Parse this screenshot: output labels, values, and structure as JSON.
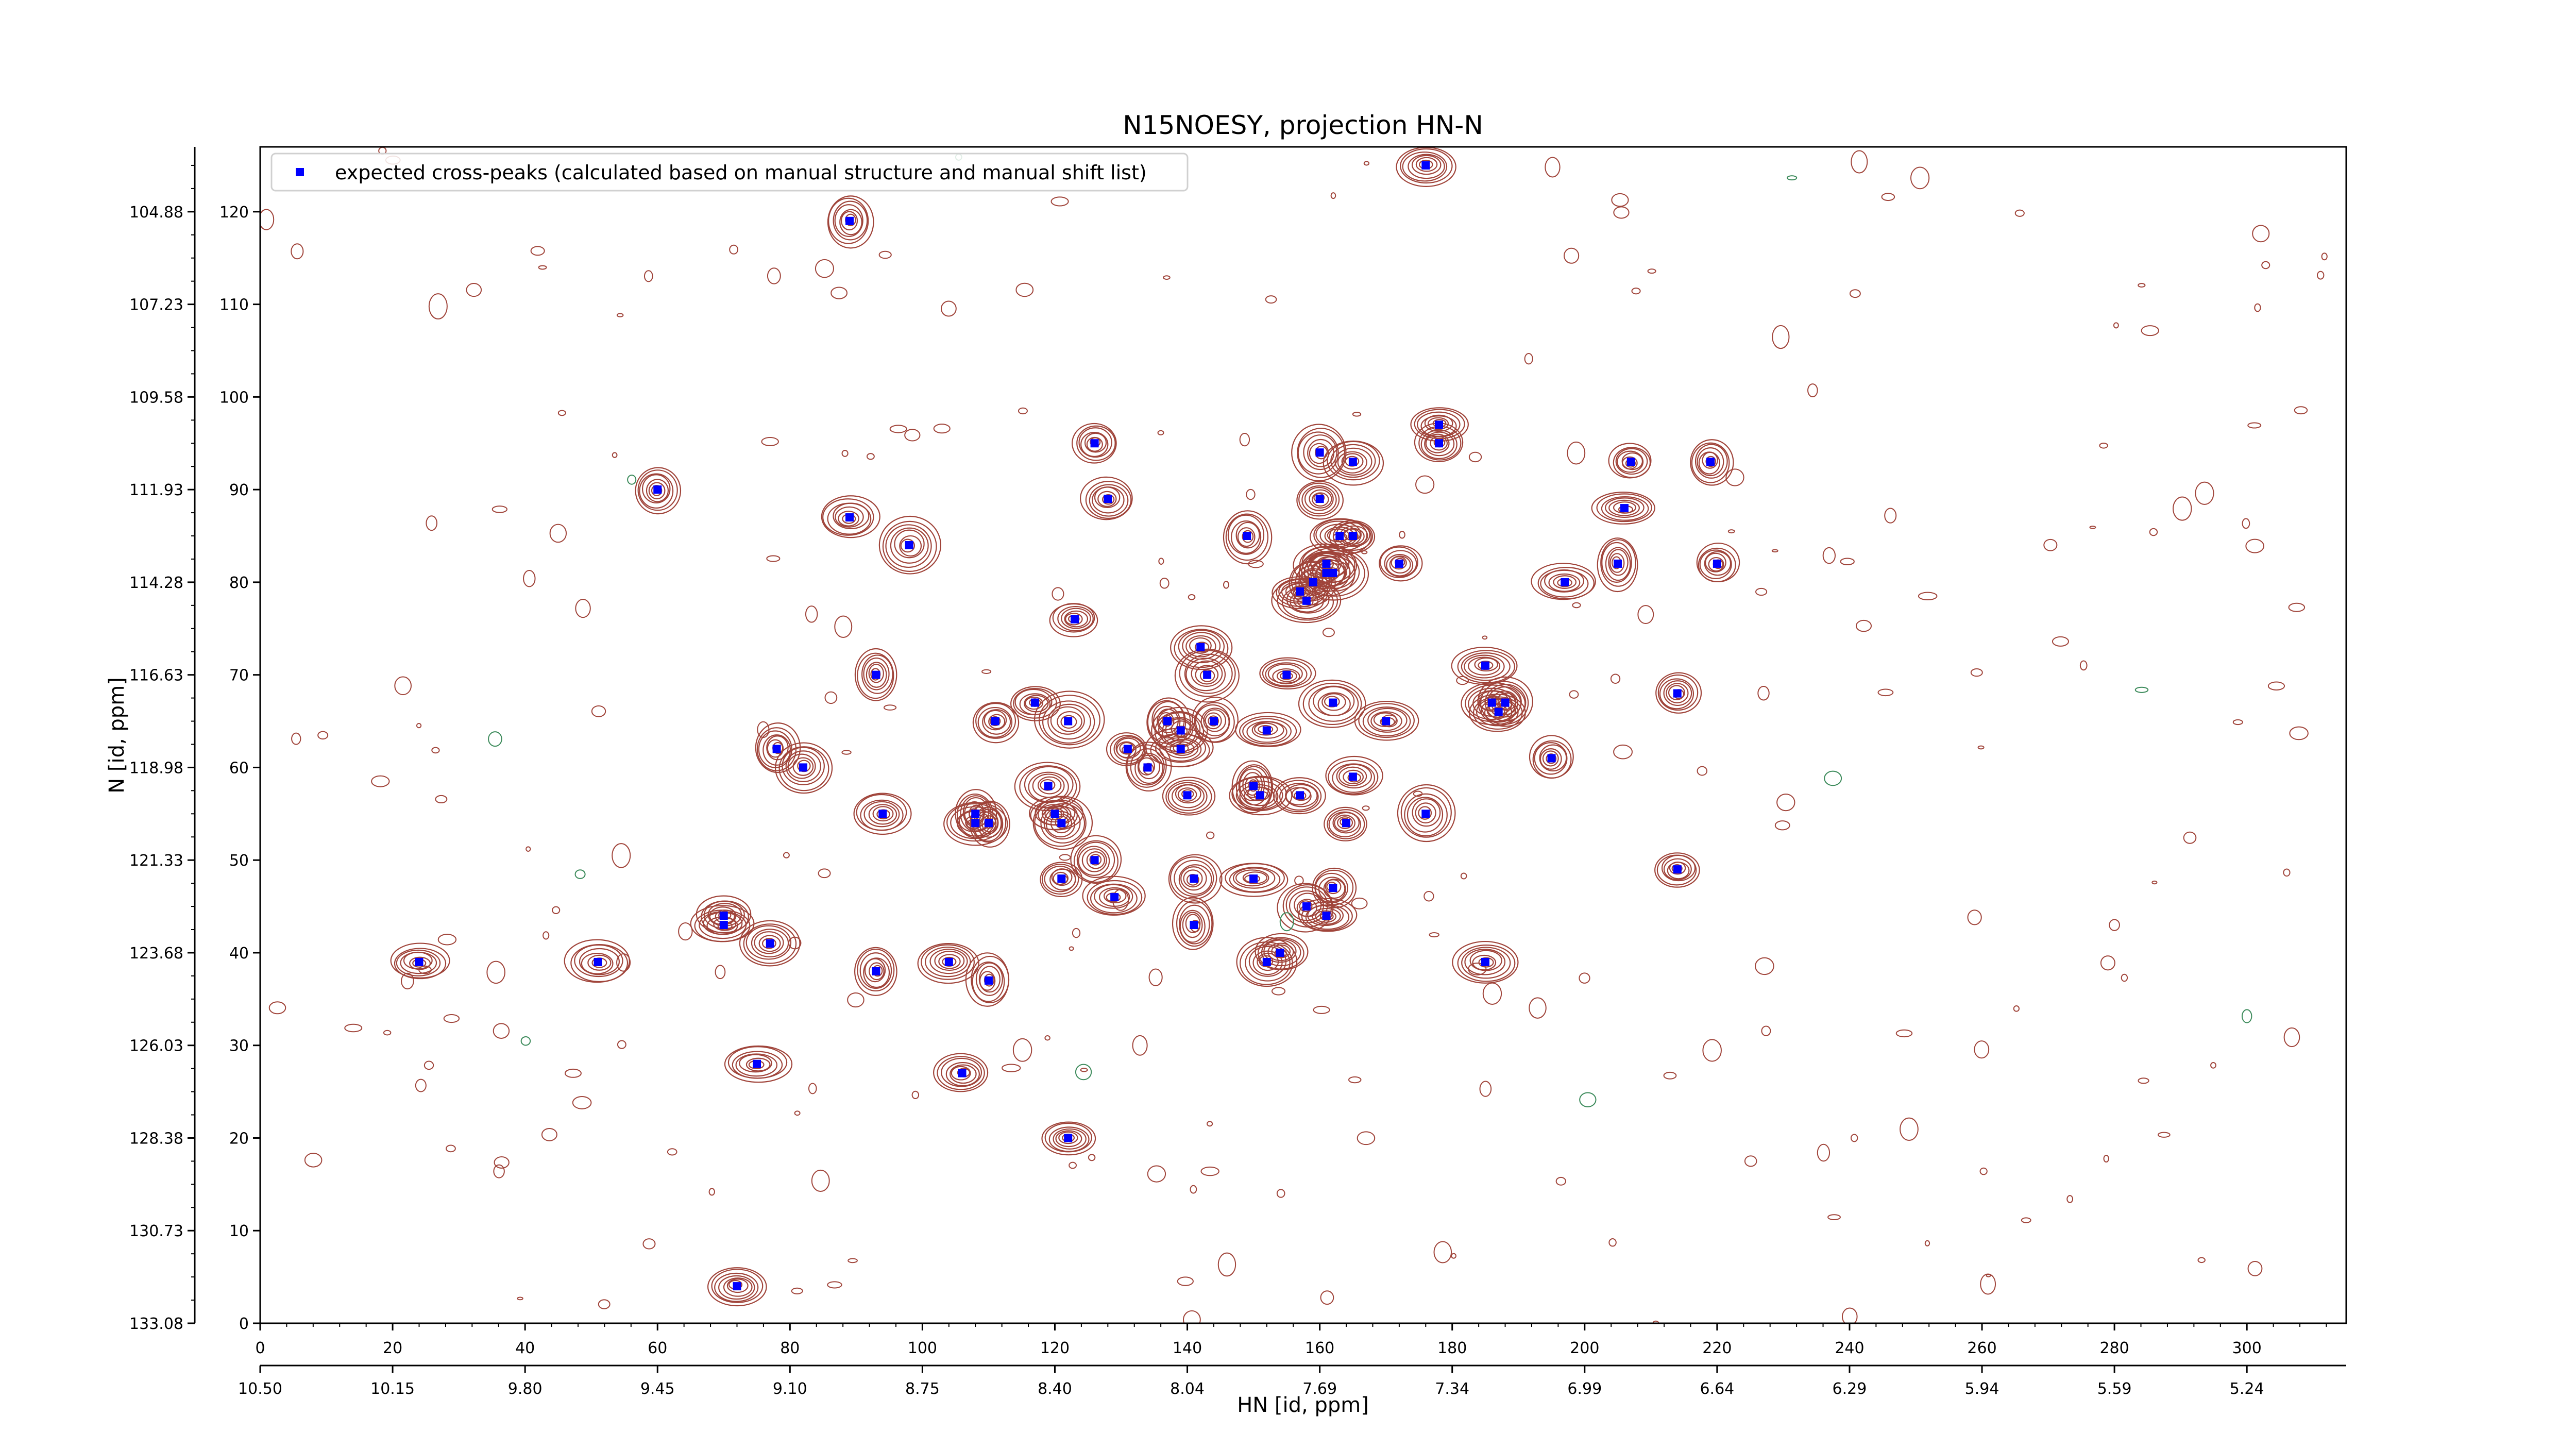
{
  "chart_data": {
    "type": "scatter",
    "title": "N15NOESY, projection HN-N",
    "xlabel": "HN [id, ppm]",
    "ylabel": "N [id, ppm]",
    "xlim": [
      0,
      315
    ],
    "ylim": [
      0,
      127
    ],
    "x_index_ticks": [
      "0",
      "20",
      "40",
      "60",
      "80",
      "100",
      "120",
      "140",
      "160",
      "180",
      "200",
      "220",
      "240",
      "260",
      "280",
      "300"
    ],
    "x_ppm_ticks": [
      "10.50",
      "10.15",
      "9.80",
      "9.45",
      "9.10",
      "8.75",
      "8.40",
      "8.04",
      "7.69",
      "7.34",
      "6.99",
      "6.64",
      "6.29",
      "5.94",
      "5.59",
      "5.24"
    ],
    "y_index_ticks": [
      "0",
      "10",
      "20",
      "30",
      "40",
      "50",
      "60",
      "70",
      "80",
      "90",
      "100",
      "110",
      "120"
    ],
    "y_ppm_ticks": [
      "133.08",
      "130.73",
      "128.38",
      "126.03",
      "123.68",
      "121.33",
      "118.98",
      "116.63",
      "114.28",
      "111.93",
      "109.58",
      "107.23",
      "104.88"
    ],
    "legend_position": "upper-left",
    "grid": false,
    "series": [
      {
        "name": "expected cross-peaks (calculated based on manual structure and manual shift list)",
        "color": "#0000ff",
        "marker": "square",
        "points": [
          [
            176,
            125
          ],
          [
            89,
            119
          ],
          [
            126,
            95
          ],
          [
            178,
            97
          ],
          [
            178,
            95
          ],
          [
            160,
            94
          ],
          [
            60,
            90
          ],
          [
            128,
            89
          ],
          [
            165,
            93
          ],
          [
            219,
            93
          ],
          [
            207,
            93
          ],
          [
            160,
            89
          ],
          [
            206,
            88
          ],
          [
            89,
            87
          ],
          [
            98,
            84
          ],
          [
            149,
            85
          ],
          [
            163,
            85
          ],
          [
            165,
            85
          ],
          [
            161,
            82
          ],
          [
            161,
            81
          ],
          [
            162,
            81
          ],
          [
            172,
            82
          ],
          [
            205,
            82
          ],
          [
            220,
            82
          ],
          [
            159,
            80
          ],
          [
            197,
            80
          ],
          [
            157,
            79
          ],
          [
            158,
            78
          ],
          [
            123,
            76
          ],
          [
            142,
            73
          ],
          [
            143,
            70
          ],
          [
            155,
            70
          ],
          [
            93,
            70
          ],
          [
            185,
            71
          ],
          [
            162,
            67
          ],
          [
            214,
            68
          ],
          [
            117,
            67
          ],
          [
            122,
            65
          ],
          [
            111,
            65
          ],
          [
            137,
            65
          ],
          [
            144,
            65
          ],
          [
            152,
            64
          ],
          [
            170,
            65
          ],
          [
            186,
            67
          ],
          [
            187,
            66
          ],
          [
            188,
            67
          ],
          [
            139,
            64
          ],
          [
            78,
            62
          ],
          [
            82,
            60
          ],
          [
            131,
            62
          ],
          [
            139,
            62
          ],
          [
            195,
            61
          ],
          [
            134,
            60
          ],
          [
            119,
            58
          ],
          [
            150,
            58
          ],
          [
            151,
            57
          ],
          [
            140,
            57
          ],
          [
            165,
            59
          ],
          [
            157,
            57
          ],
          [
            94,
            55
          ],
          [
            108,
            55
          ],
          [
            110,
            54
          ],
          [
            120,
            55
          ],
          [
            108,
            54
          ],
          [
            121,
            54
          ],
          [
            164,
            54
          ],
          [
            176,
            55
          ],
          [
            126,
            50
          ],
          [
            214,
            49
          ],
          [
            141,
            48
          ],
          [
            150,
            48
          ],
          [
            162,
            47
          ],
          [
            121,
            48
          ],
          [
            129,
            46
          ],
          [
            158,
            45
          ],
          [
            161,
            44
          ],
          [
            70,
            44
          ],
          [
            70,
            43
          ],
          [
            141,
            43
          ],
          [
            77,
            41
          ],
          [
            24,
            39
          ],
          [
            51,
            39
          ],
          [
            104,
            39
          ],
          [
            93,
            38
          ],
          [
            110,
            37
          ],
          [
            154,
            40
          ],
          [
            185,
            39
          ],
          [
            152,
            39
          ],
          [
            75,
            28
          ],
          [
            106,
            27
          ],
          [
            122,
            20
          ],
          [
            72,
            4
          ]
        ]
      }
    ]
  }
}
